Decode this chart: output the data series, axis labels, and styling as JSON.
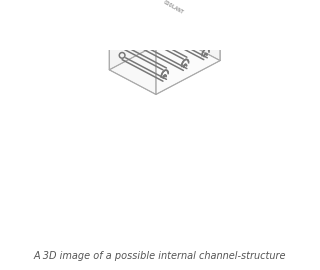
{
  "title": "A 3D image of a possible internal channel-structure",
  "title_fontsize": 7,
  "title_color": "#555555",
  "bg_color": "#ffffff",
  "line_color": "#aaaaaa",
  "structure_color": "#888888",
  "fig_width": 3.2,
  "fig_height": 2.7,
  "dpi": 100
}
